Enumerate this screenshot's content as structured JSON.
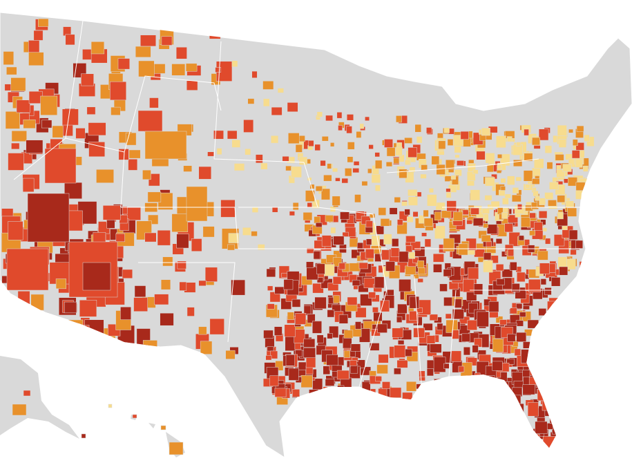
{
  "map": {
    "land": "#d9d9d9",
    "background": "#ffffff",
    "colors": [
      "#f7dc8e",
      "#e8912b",
      "#e04a2c",
      "#a8291b"
    ]
  }
}
